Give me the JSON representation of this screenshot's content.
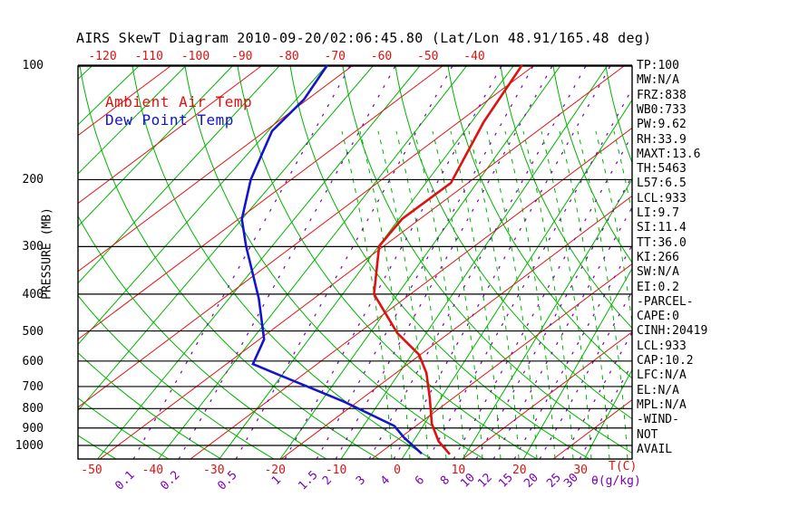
{
  "title": "AIRS SkewT Diagram 2010-09-20/02:06:45.80 (Lat/Lon 48.91/165.48 deg)",
  "legend": {
    "ambient_label": "Ambient Air Temp",
    "dewpoint_label": "Dew Point Temp"
  },
  "axes": {
    "pressure_axis_label": "PRESSURE (MB)",
    "temp_unit_label": "T(C)",
    "mixing_ratio_unit_label": "θ(g/kg)"
  },
  "right_panel": {
    "items": [
      "TP:100",
      "MW:N/A",
      "FRZ:838",
      "WB0:733",
      "PW:9.62",
      "RH:33.9",
      "MAXT:13.6",
      "TH:5463",
      "L57:6.5",
      "LCL:933",
      "LI:9.7",
      "SI:11.4",
      "TT:36.0",
      "KI:266",
      "SW:N/A",
      "EI:0.2",
      "-PARCEL-",
      "CAPE:0",
      "CINH:20419",
      "LCL:933",
      "CAP:10.2",
      "LFC:N/A",
      "EL:N/A",
      "MPL:N/A",
      "-WIND-",
      "NOT",
      "AVAIL"
    ]
  },
  "colors": {
    "isotherm_green": "#00b400",
    "adiabat_red": "#e41414",
    "mixing_ratio_purple": "#7a00b8",
    "pressure_line_black": "#000000",
    "ambient_profile_red": "#e01010",
    "dewpoint_profile_blue": "#1414cc"
  },
  "chart_data": {
    "type": "line",
    "subtype": "skewt_log_p_sounding",
    "title": "AIRS SkewT Diagram 2010-09-20/02:06:45.80 (Lat/Lon 48.91/165.48 deg)",
    "xlabel": "T(C)",
    "ylabel": "PRESSURE (MB)",
    "y_scale": "log-pressure-inverted",
    "ylim": [
      100,
      1060
    ],
    "pressure_ticks_mb": [
      100,
      200,
      300,
      400,
      500,
      600,
      700,
      800,
      900,
      1000
    ],
    "top_isotherm_labels_c": [
      -120,
      -110,
      -100,
      -90,
      -80,
      -70,
      -60,
      -50,
      -40
    ],
    "bottom_isotherm_labels_c": [
      -50,
      -40,
      -30,
      -20,
      -10,
      0,
      10,
      20,
      30
    ],
    "mixing_ratio_labels_gkg": [
      0.1,
      0.2,
      0.5,
      1,
      1.5,
      2,
      3,
      4,
      6,
      8,
      10,
      12,
      15,
      20,
      25,
      30
    ],
    "grid": {
      "isotherms_every_c": 10,
      "legend_position": "top-left",
      "gridlines": "skewt full grid"
    },
    "series": [
      {
        "name": "Ambient Air Temp",
        "points_p_mb_vs_t_c": [
          {
            "p": 100,
            "t": -28.3
          },
          {
            "p": 141,
            "t": -27.5
          },
          {
            "p": 204,
            "t": -25.1
          },
          {
            "p": 254,
            "t": -29.4
          },
          {
            "p": 299,
            "t": -29.9
          },
          {
            "p": 400,
            "t": -24.3
          },
          {
            "p": 507,
            "t": -15.1
          },
          {
            "p": 577,
            "t": -8.7
          },
          {
            "p": 645,
            "t": -5.3
          },
          {
            "p": 751,
            "t": -1.9
          },
          {
            "p": 876,
            "t": 1.2
          },
          {
            "p": 975,
            "t": 4.2
          },
          {
            "p": 1055,
            "t": 7.4
          }
        ]
      },
      {
        "name": "Dew Point Temp",
        "points_p_mb_vs_t_c": [
          {
            "p": 100,
            "t": -69.9
          },
          {
            "p": 123,
            "t": -68.4
          },
          {
            "p": 149,
            "t": -69.2
          },
          {
            "p": 200,
            "t": -64.9
          },
          {
            "p": 254,
            "t": -60.0
          },
          {
            "p": 299,
            "t": -54.9
          },
          {
            "p": 411,
            "t": -44.6
          },
          {
            "p": 526,
            "t": -37.9
          },
          {
            "p": 611,
            "t": -36.5
          },
          {
            "p": 650,
            "t": -30.9
          },
          {
            "p": 700,
            "t": -24.2
          },
          {
            "p": 766,
            "t": -16.2
          },
          {
            "p": 889,
            "t": -4.8
          },
          {
            "p": 952,
            "t": -2.0
          },
          {
            "p": 1051,
            "t": 2.7
          }
        ]
      }
    ]
  }
}
